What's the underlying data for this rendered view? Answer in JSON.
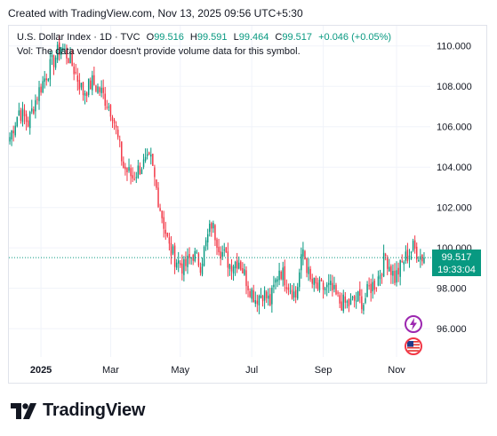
{
  "header": {
    "created": "Created with TradingView.com, Nov 13, 2025 09:56 UTC+5:30"
  },
  "legend": {
    "title": "U.S. Dollar Index · 1D · TVC",
    "o_label": "O",
    "o_value": "99.516",
    "h_label": "H",
    "h_value": "99.591",
    "l_label": "L",
    "l_value": "99.464",
    "c_label": "C",
    "c_value": "99.517",
    "change": "+0.046 (+0.05%)",
    "vol": "Vol: The data vendor doesn't provide volume data for this symbol."
  },
  "price_box": {
    "price": "99.517",
    "countdown": "19:33:04"
  },
  "brand": {
    "name": "TradingView",
    "icon": "tradingview-logo-icon"
  },
  "badges": {
    "events": "lightning-icon",
    "flag": "us-flag-icon"
  },
  "colors": {
    "up": "#089981",
    "down": "#f23645",
    "grid": "#f0f3fa",
    "accent": "#089981"
  },
  "chart_data": {
    "type": "candlestick",
    "ylim": [
      94.6,
      111.0
    ],
    "y_ticks": [
      "110.000",
      "108.000",
      "106.000",
      "104.000",
      "102.000",
      "100.000",
      "98.000",
      "96.000"
    ],
    "y_tick_values": [
      110,
      108,
      106,
      104,
      102,
      100,
      98,
      96
    ],
    "x_ticks": [
      "2025",
      "Mar",
      "May",
      "Jul",
      "Sep",
      "Nov"
    ],
    "x_tick_index": [
      17,
      55,
      93,
      132,
      171,
      211
    ],
    "close_path": [
      [
        0,
        105.5
      ],
      [
        5,
        106.8
      ],
      [
        10,
        106.2
      ],
      [
        15,
        107.6
      ],
      [
        20,
        108.6
      ],
      [
        28,
        110.0
      ],
      [
        33,
        109.3
      ],
      [
        40,
        107.7
      ],
      [
        45,
        108.2
      ],
      [
        50,
        107.7
      ],
      [
        56,
        106.7
      ],
      [
        62,
        104.0
      ],
      [
        67,
        103.5
      ],
      [
        72,
        104.1
      ],
      [
        77,
        104.3
      ],
      [
        82,
        102.0
      ],
      [
        87,
        100.0
      ],
      [
        90,
        99.5
      ],
      [
        95,
        99.0
      ],
      [
        100,
        99.7
      ],
      [
        104,
        99.2
      ],
      [
        110,
        101.2
      ],
      [
        115,
        99.9
      ],
      [
        120,
        99.2
      ],
      [
        125,
        99.4
      ],
      [
        130,
        98.2
      ],
      [
        134,
        97.5
      ],
      [
        138,
        97.8
      ],
      [
        142,
        97.3
      ],
      [
        147,
        99.0
      ],
      [
        152,
        98.2
      ],
      [
        156,
        97.6
      ],
      [
        160,
        99.9
      ],
      [
        164,
        98.3
      ],
      [
        168,
        98.0
      ],
      [
        175,
        98.0
      ],
      [
        180,
        97.3
      ],
      [
        185,
        97.2
      ],
      [
        190,
        97.5
      ],
      [
        193,
        97.3
      ],
      [
        196,
        98.0
      ],
      [
        200,
        98.3
      ],
      [
        205,
        99.6
      ],
      [
        210,
        98.5
      ],
      [
        215,
        99.4
      ],
      [
        220,
        100.0
      ],
      [
        224,
        99.6
      ],
      [
        226,
        99.52
      ]
    ],
    "last_close": 99.517
  }
}
